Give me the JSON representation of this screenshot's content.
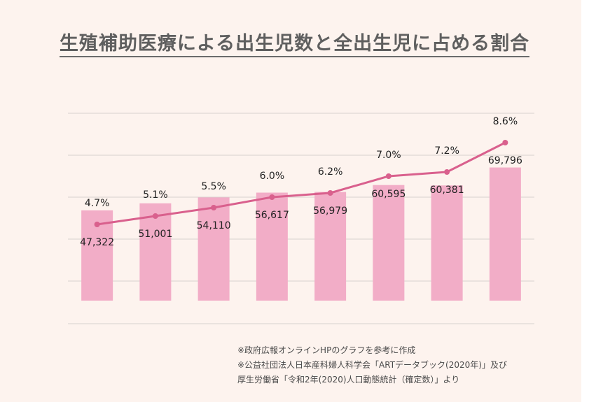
{
  "title": "生殖補助医療による出生児数と全出生児に占める割合",
  "chart_data": {
    "type": "bar",
    "categories": [
      "",
      "",
      "",
      "",
      "",
      "",
      "",
      ""
    ],
    "series": [
      {
        "type": "bar",
        "values": [
          47322,
          51001,
          54110,
          56617,
          56979,
          60595,
          60381,
          69796
        ]
      },
      {
        "type": "line",
        "values": [
          4.7,
          5.1,
          5.5,
          6.0,
          6.2,
          7.0,
          7.2,
          8.6
        ]
      }
    ],
    "bar_labels": [
      "47,322",
      "51,001",
      "54,110",
      "56,617",
      "56,979",
      "60,595",
      "60,381",
      "69,796"
    ],
    "line_labels": [
      "4.7%",
      "5.1%",
      "5.5%",
      "6.0%",
      "6.2%",
      "7.0%",
      "7.2%",
      "8.6%"
    ],
    "ylim_bar": [
      0,
      70000
    ],
    "grid": true,
    "colors": {
      "bar": "#f2adc7",
      "line": "#d9608d",
      "grid": "#d8d2cf",
      "text": "#222222"
    }
  },
  "notes": [
    "※政府広報オンラインHPのグラフを参考に作成",
    "※公益社団法人日本産科婦人科学会「ARTデータブック(2020年)」及び",
    "厚生労働省「令和2年(2020)人口動態統計（確定数）」より"
  ]
}
